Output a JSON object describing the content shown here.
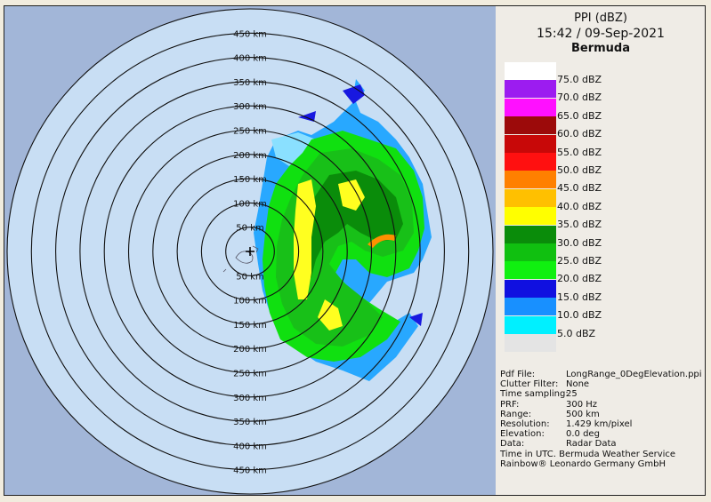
{
  "title": {
    "line1": "PPI (dBZ)",
    "line2": "15:42 / 09-Sep-2021",
    "line3": "Bermuda"
  },
  "range_labels": [
    "50 km",
    "100 km",
    "150 km",
    "200 km",
    "250 km",
    "300 km",
    "350 km",
    "400 km",
    "450 km"
  ],
  "legend": [
    {
      "label": "75.0 dBZ",
      "color": "#ffffff"
    },
    {
      "label": "70.0 dBZ",
      "color": "#9c1cf0"
    },
    {
      "label": "65.0 dBZ",
      "color": "#ff10ff"
    },
    {
      "label": "60.0 dBZ",
      "color": "#9c0a0a"
    },
    {
      "label": "55.0 dBZ",
      "color": "#c80808"
    },
    {
      "label": "50.0 dBZ",
      "color": "#ff1010"
    },
    {
      "label": "45.0 dBZ",
      "color": "#ff8000"
    },
    {
      "label": "40.0 dBZ",
      "color": "#ffc000"
    },
    {
      "label": "35.0 dBZ",
      "color": "#ffff00"
    },
    {
      "label": "30.0 dBZ",
      "color": "#0a8c0a"
    },
    {
      "label": "25.0 dBZ",
      "color": "#10c010"
    },
    {
      "label": "20.0 dBZ",
      "color": "#10f010"
    },
    {
      "label": "15.0 dBZ",
      "color": "#1010e0"
    },
    {
      "label": "10.0 dBZ",
      "color": "#1890ff"
    },
    {
      "label": "5.0 dBZ",
      "color": "#00f0ff"
    },
    {
      "label": "",
      "color": "#e4e4e4"
    }
  ],
  "info": [
    {
      "key": "Pdf File:",
      "value": "LongRange_0DegElevation.ppi"
    },
    {
      "key": "Clutter Filter:",
      "value": "None"
    },
    {
      "key": "Time sampling:",
      "value": "25"
    },
    {
      "key": "PRF:",
      "value": "300 Hz"
    },
    {
      "key": "Range:",
      "value": "500 km"
    },
    {
      "key": "Resolution:",
      "value": "1.429 km/pixel"
    },
    {
      "key": "Elevation:",
      "value": "0.0 deg"
    },
    {
      "key": "Data:",
      "value": "Radar Data"
    }
  ],
  "footer1": "Time in UTC.  Bermuda Weather Service",
  "footer2": "Rainbow® Leonardo Germany GmbH",
  "colors": {
    "outside": "#a2b6d8",
    "disk": "#c8def4",
    "ring": "#111111"
  }
}
